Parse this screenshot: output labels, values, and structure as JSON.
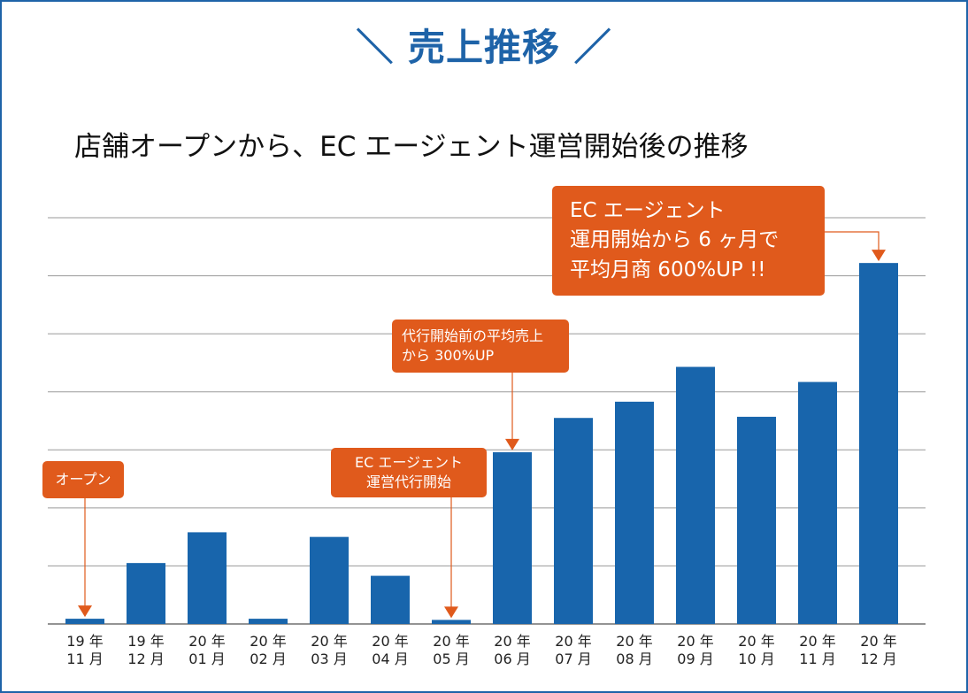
{
  "page": {
    "title": "＼ 売上推移 ／",
    "subtitle": "店舗オープンから、EC エージェント運営開始後の推移"
  },
  "colors": {
    "bar": "#1865ac",
    "accent": "#e05a1c",
    "grid": "#9a9a9a",
    "title": "#1e63a8"
  },
  "chart_data": {
    "type": "bar",
    "title": "＼ 売上推移 ／",
    "subtitle": "店舗オープンから、EC エージェント運営開始後の推移",
    "categories": [
      [
        "19 年",
        "11 月"
      ],
      [
        "19 年",
        "12 月"
      ],
      [
        "20 年",
        "01 月"
      ],
      [
        "20 年",
        "02 月"
      ],
      [
        "20 年",
        "03 月"
      ],
      [
        "20 年",
        "04 月"
      ],
      [
        "20 年",
        "05 月"
      ],
      [
        "20 年",
        "06 月"
      ],
      [
        "20 年",
        "07 月"
      ],
      [
        "20 年",
        "08 月"
      ],
      [
        "20 年",
        "09 月"
      ],
      [
        "20 年",
        "10 月"
      ],
      [
        "20 年",
        "11 月"
      ],
      [
        "20 年",
        "12 月"
      ]
    ],
    "values": [
      0.09,
      1.05,
      1.58,
      0.09,
      1.5,
      0.83,
      0.07,
      2.96,
      3.55,
      3.83,
      4.43,
      3.57,
      4.17,
      6.22
    ],
    "ylim": [
      0,
      7
    ],
    "y_gridlines": [
      1,
      2,
      3,
      4,
      5,
      6,
      7
    ],
    "y_tick_labels": false,
    "grid": true,
    "legend": "none"
  },
  "annotations": [
    {
      "lines": [
        "オープン"
      ],
      "target_index": 0
    },
    {
      "lines": [
        "EC エージェント",
        "運営代行開始"
      ],
      "target_index": 6
    },
    {
      "lines": [
        "代行開始前の平均売上",
        "から 300%UP"
      ],
      "target_index": 7
    },
    {
      "lines": [
        "EC エージェント",
        "運用開始から 6 ヶ月で",
        "平均月商 600%UP !!"
      ],
      "target_index": 13
    }
  ]
}
